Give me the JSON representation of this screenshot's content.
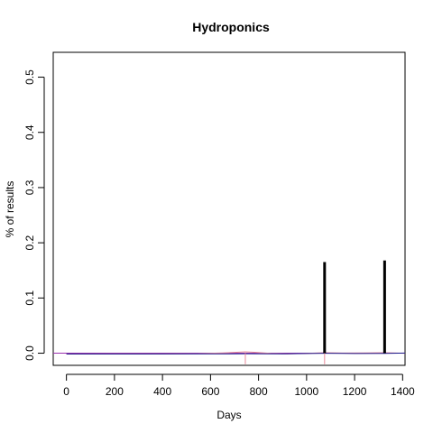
{
  "chart_data": {
    "type": "line",
    "title": "Hydroponics",
    "xlabel": "Days",
    "ylabel": "% of results",
    "xlim": [
      -55,
      1410
    ],
    "ylim": [
      -0.022,
      0.545
    ],
    "x_ticks": [
      0,
      200,
      400,
      600,
      800,
      1000,
      1200,
      1400
    ],
    "x_tick_labels": [
      "0",
      "200",
      "400",
      "600",
      "800",
      "1000",
      "1200",
      "1400"
    ],
    "y_ticks": [
      0.0,
      0.1,
      0.2,
      0.3,
      0.4,
      0.5
    ],
    "y_tick_labels": [
      "0.0",
      "0.1",
      "0.2",
      "0.3",
      "0.4",
      "0.5"
    ],
    "grid": false,
    "legend": "none",
    "series": [
      {
        "kind": "spikes",
        "color": "#000000",
        "points": [
          {
            "x": 1075,
            "y": 0.165
          },
          {
            "x": 1325,
            "y": 0.168
          }
        ]
      },
      {
        "kind": "curve",
        "color": "#e88a9a",
        "points": [
          {
            "x": 0,
            "y": -0.0015
          },
          {
            "x": 200,
            "y": -0.0012
          },
          {
            "x": 400,
            "y": -0.0012
          },
          {
            "x": 550,
            "y": -0.0008
          },
          {
            "x": 650,
            "y": 0.0005
          },
          {
            "x": 700,
            "y": 0.0015
          },
          {
            "x": 745,
            "y": 0.0025
          },
          {
            "x": 790,
            "y": 0.0015
          },
          {
            "x": 850,
            "y": -0.0003
          },
          {
            "x": 920,
            "y": -0.0012
          },
          {
            "x": 1000,
            "y": -0.0004
          },
          {
            "x": 1075,
            "y": 0.0008
          },
          {
            "x": 1150,
            "y": 0.0003
          },
          {
            "x": 1250,
            "y": 0.0005
          },
          {
            "x": 1325,
            "y": 0.0008
          },
          {
            "x": 1410,
            "y": -0.0001
          }
        ]
      },
      {
        "kind": "curve",
        "color": "#1a1a8c",
        "points": [
          {
            "x": 0,
            "y": -0.0013
          },
          {
            "x": 300,
            "y": -0.0013
          },
          {
            "x": 600,
            "y": -0.0012
          },
          {
            "x": 745,
            "y": -0.001
          },
          {
            "x": 900,
            "y": -0.0011
          },
          {
            "x": 1000,
            "y": -0.0006
          },
          {
            "x": 1075,
            "y": -0.0002
          },
          {
            "x": 1200,
            "y": -0.0005
          },
          {
            "x": 1325,
            "y": -0.0003
          },
          {
            "x": 1410,
            "y": 0.0002
          }
        ]
      },
      {
        "kind": "vlines",
        "color": "#e88a9a",
        "x": [
          745,
          1075
        ]
      }
    ],
    "reference_lines": [
      {
        "orientation": "horizontal",
        "y": 0.0,
        "color": "#9b30b0"
      }
    ]
  }
}
